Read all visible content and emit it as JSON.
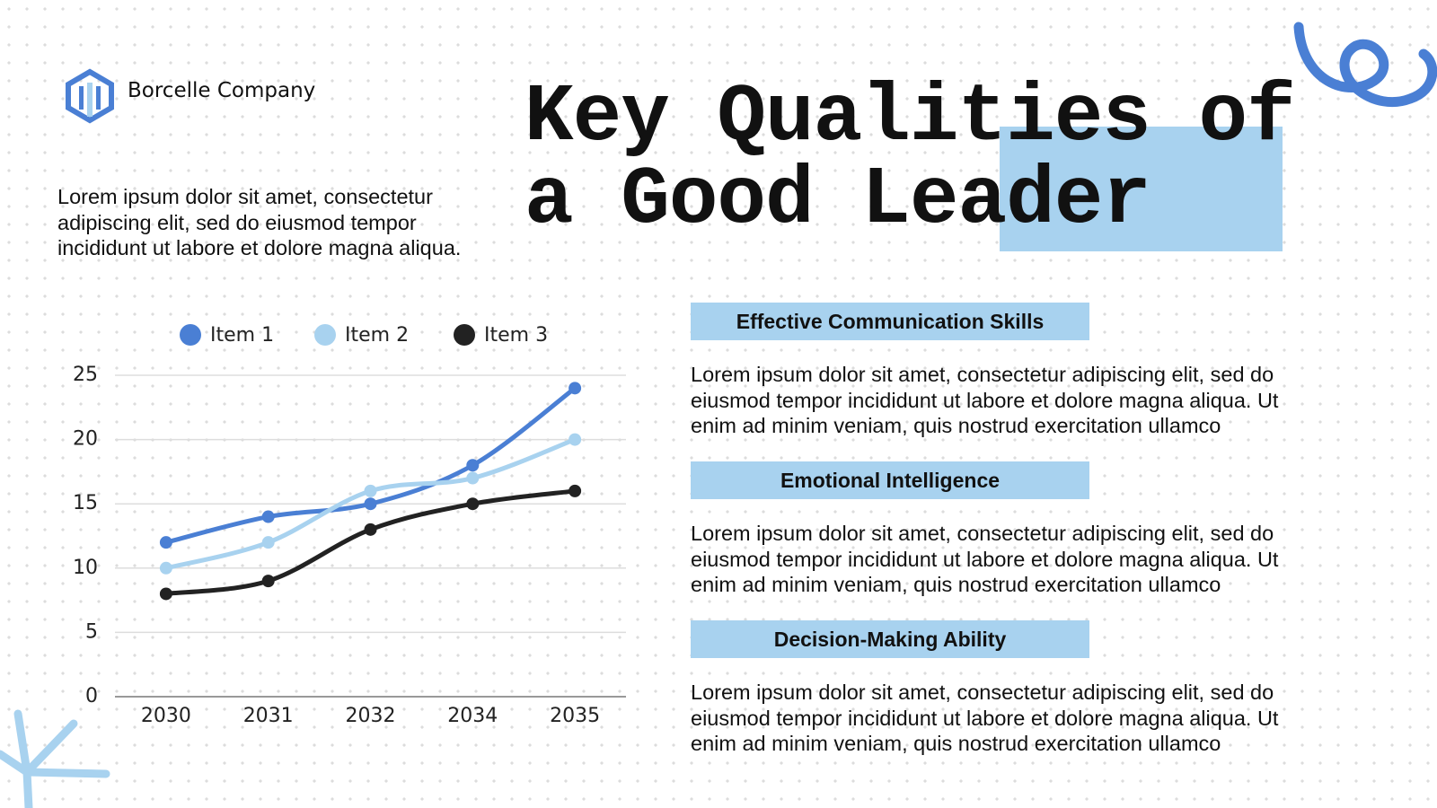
{
  "header": {
    "company": "Borcelle Company"
  },
  "intro": "Lorem ipsum dolor sit amet, consectetur adipiscing elit, sed do eiusmod tempor incididunt ut labore et dolore magna aliqua.",
  "title_lines": [
    "Key Qualities of",
    "a Good Leader"
  ],
  "qualities": [
    {
      "heading": "Effective Communication Skills",
      "text": "Lorem ipsum dolor sit amet, consectetur adipiscing elit, sed do eiusmod tempor incididunt ut labore et dolore magna aliqua. Ut enim ad minim veniam, quis nostrud exercitation ullamco"
    },
    {
      "heading": "Emotional Intelligence",
      "text": "Lorem ipsum dolor sit amet, consectetur adipiscing elit, sed do eiusmod tempor incididunt ut labore et dolore magna aliqua. Ut enim ad minim veniam, quis nostrud exercitation ullamco"
    },
    {
      "heading": "Decision-Making Ability",
      "text": "Lorem ipsum dolor sit amet, consectetur adipiscing elit, sed do eiusmod tempor incididunt ut labore et dolore magna aliqua. Ut enim ad minim veniam, quis nostrud exercitation ullamco"
    }
  ],
  "chart_data": {
    "type": "line",
    "categories": [
      "2030",
      "2031",
      "2032",
      "2034",
      "2035"
    ],
    "series": [
      {
        "name": "Item 1",
        "color": "#4a7fd4",
        "values": [
          12,
          14,
          15,
          18,
          24
        ]
      },
      {
        "name": "Item 2",
        "color": "#a8d2ef",
        "values": [
          10,
          12,
          16,
          17,
          20
        ]
      },
      {
        "name": "Item 3",
        "color": "#222222",
        "values": [
          8,
          9,
          13,
          15,
          16
        ]
      }
    ],
    "ylim": [
      0,
      25
    ],
    "yticks": [
      0,
      5,
      10,
      15,
      20,
      25
    ],
    "grid": true,
    "smooth": true,
    "legend": "top"
  }
}
